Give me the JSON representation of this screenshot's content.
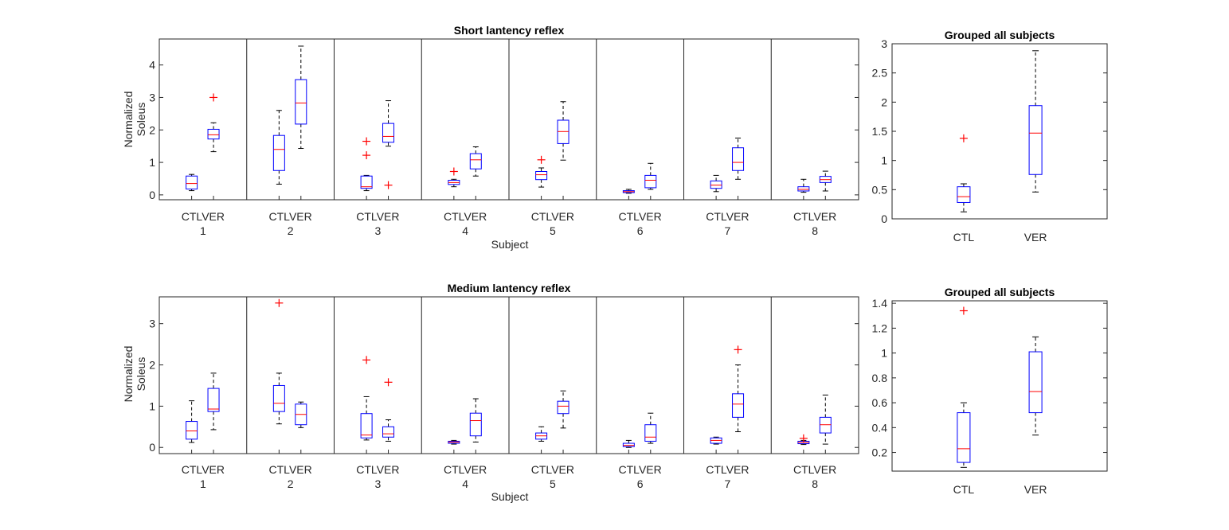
{
  "colors": {
    "box": "#0000ff",
    "median": "#ff0000",
    "outlier": "#ff0000",
    "whisker": "#000000",
    "axis": "#262626"
  },
  "chart_data": [
    {
      "type": "box",
      "title": "Short lantency reflex",
      "xlabel": "Subject",
      "ylabel": [
        "Normalized",
        "Soleus"
      ],
      "ylim": [
        -0.15,
        4.8
      ],
      "yticks": [
        0,
        1,
        2,
        3,
        4
      ],
      "group_labels": [
        "1",
        "2",
        "3",
        "4",
        "5",
        "6",
        "7",
        "8"
      ],
      "condition_labels": [
        "CTL",
        "VER"
      ],
      "groups": [
        {
          "label": "1",
          "boxes": [
            {
              "condition": "CTL",
              "min": 0.13,
              "q1": 0.18,
              "median": 0.35,
              "q3": 0.58,
              "max": 0.63,
              "outliers": []
            },
            {
              "condition": "VER",
              "min": 1.33,
              "q1": 1.72,
              "median": 1.85,
              "q3": 2.02,
              "max": 2.22,
              "outliers": [
                3.0
              ]
            }
          ]
        },
        {
          "label": "2",
          "boxes": [
            {
              "condition": "CTL",
              "min": 0.33,
              "q1": 0.75,
              "median": 1.4,
              "q3": 1.83,
              "max": 2.6,
              "outliers": []
            },
            {
              "condition": "VER",
              "min": 1.43,
              "q1": 2.18,
              "median": 2.83,
              "q3": 3.55,
              "max": 4.58,
              "outliers": []
            }
          ]
        },
        {
          "label": "3",
          "boxes": [
            {
              "condition": "CTL",
              "min": 0.13,
              "q1": 0.2,
              "median": 0.25,
              "q3": 0.58,
              "max": 0.6,
              "outliers": [
                1.22,
                1.65
              ]
            },
            {
              "condition": "VER",
              "min": 1.5,
              "q1": 1.62,
              "median": 1.8,
              "q3": 2.2,
              "max": 2.9,
              "outliers": [
                0.3
              ]
            }
          ]
        },
        {
          "label": "4",
          "boxes": [
            {
              "condition": "CTL",
              "min": 0.25,
              "q1": 0.32,
              "median": 0.38,
              "q3": 0.45,
              "max": 0.48,
              "outliers": [
                0.72
              ]
            },
            {
              "condition": "VER",
              "min": 0.58,
              "q1": 0.8,
              "median": 1.08,
              "q3": 1.27,
              "max": 1.48,
              "outliers": []
            }
          ]
        },
        {
          "label": "5",
          "boxes": [
            {
              "condition": "CTL",
              "min": 0.24,
              "q1": 0.47,
              "median": 0.62,
              "q3": 0.72,
              "max": 0.83,
              "outliers": [
                1.08
              ]
            },
            {
              "condition": "VER",
              "min": 1.07,
              "q1": 1.58,
              "median": 1.95,
              "q3": 2.3,
              "max": 2.87,
              "outliers": []
            }
          ]
        },
        {
          "label": "6",
          "boxes": [
            {
              "condition": "CTL",
              "min": 0.05,
              "q1": 0.07,
              "median": 0.1,
              "q3": 0.13,
              "max": 0.17,
              "outliers": []
            },
            {
              "condition": "VER",
              "min": 0.17,
              "q1": 0.22,
              "median": 0.45,
              "q3": 0.6,
              "max": 0.97,
              "outliers": []
            }
          ]
        },
        {
          "label": "7",
          "boxes": [
            {
              "condition": "CTL",
              "min": 0.1,
              "q1": 0.2,
              "median": 0.3,
              "q3": 0.43,
              "max": 0.6,
              "outliers": []
            },
            {
              "condition": "VER",
              "min": 0.48,
              "q1": 0.75,
              "median": 1.0,
              "q3": 1.45,
              "max": 1.75,
              "outliers": []
            }
          ]
        },
        {
          "label": "8",
          "boxes": [
            {
              "condition": "CTL",
              "min": 0.08,
              "q1": 0.12,
              "median": 0.17,
              "q3": 0.25,
              "max": 0.48,
              "outliers": []
            },
            {
              "condition": "VER",
              "min": 0.12,
              "q1": 0.38,
              "median": 0.47,
              "q3": 0.57,
              "max": 0.73,
              "outliers": []
            }
          ]
        }
      ]
    },
    {
      "type": "box",
      "title": "Grouped all subjects",
      "xlabel": "",
      "ylabel": "",
      "ylim": [
        0,
        3
      ],
      "yticks": [
        0,
        0.5,
        1,
        1.5,
        2,
        2.5,
        3
      ],
      "categories": [
        "CTL",
        "VER"
      ],
      "boxes": [
        {
          "condition": "CTL",
          "min": 0.12,
          "q1": 0.28,
          "median": 0.38,
          "q3": 0.55,
          "max": 0.6,
          "outliers": [
            1.38
          ]
        },
        {
          "condition": "VER",
          "min": 0.46,
          "q1": 0.76,
          "median": 1.47,
          "q3": 1.94,
          "max": 2.88,
          "outliers": []
        }
      ]
    },
    {
      "type": "box",
      "title": "Medium lantency reflex",
      "xlabel": "Subject",
      "ylabel": [
        "Normalized",
        "Soleus"
      ],
      "ylim": [
        -0.15,
        3.65
      ],
      "yticks": [
        0,
        1,
        2,
        3
      ],
      "group_labels": [
        "1",
        "2",
        "3",
        "4",
        "5",
        "6",
        "7",
        "8"
      ],
      "condition_labels": [
        "CTL",
        "VER"
      ],
      "groups": [
        {
          "label": "1",
          "boxes": [
            {
              "condition": "CTL",
              "min": 0.12,
              "q1": 0.2,
              "median": 0.4,
              "q3": 0.63,
              "max": 1.13,
              "outliers": []
            },
            {
              "condition": "VER",
              "min": 0.43,
              "q1": 0.87,
              "median": 0.93,
              "q3": 1.43,
              "max": 1.8,
              "outliers": []
            }
          ]
        },
        {
          "label": "2",
          "boxes": [
            {
              "condition": "CTL",
              "min": 0.57,
              "q1": 0.87,
              "median": 1.07,
              "q3": 1.5,
              "max": 1.8,
              "outliers": [
                3.5
              ]
            },
            {
              "condition": "VER",
              "min": 0.48,
              "q1": 0.55,
              "median": 0.8,
              "q3": 1.05,
              "max": 1.1,
              "outliers": []
            }
          ]
        },
        {
          "label": "3",
          "boxes": [
            {
              "condition": "CTL",
              "min": 0.18,
              "q1": 0.23,
              "median": 0.3,
              "q3": 0.82,
              "max": 1.23,
              "outliers": [
                2.12
              ]
            },
            {
              "condition": "VER",
              "min": 0.15,
              "q1": 0.25,
              "median": 0.33,
              "q3": 0.5,
              "max": 0.67,
              "outliers": [
                1.58
              ]
            }
          ]
        },
        {
          "label": "4",
          "boxes": [
            {
              "condition": "CTL",
              "min": 0.08,
              "q1": 0.1,
              "median": 0.13,
              "q3": 0.15,
              "max": 0.17,
              "outliers": []
            },
            {
              "condition": "VER",
              "min": 0.13,
              "q1": 0.28,
              "median": 0.65,
              "q3": 0.83,
              "max": 1.18,
              "outliers": []
            }
          ]
        },
        {
          "label": "5",
          "boxes": [
            {
              "condition": "CTL",
              "min": 0.15,
              "q1": 0.2,
              "median": 0.28,
              "q3": 0.35,
              "max": 0.5,
              "outliers": []
            },
            {
              "condition": "VER",
              "min": 0.47,
              "q1": 0.82,
              "median": 1.0,
              "q3": 1.12,
              "max": 1.37,
              "outliers": []
            }
          ]
        },
        {
          "label": "6",
          "boxes": [
            {
              "condition": "CTL",
              "min": 0.0,
              "q1": 0.02,
              "median": 0.05,
              "q3": 0.1,
              "max": 0.17,
              "outliers": []
            },
            {
              "condition": "VER",
              "min": 0.1,
              "q1": 0.15,
              "median": 0.25,
              "q3": 0.55,
              "max": 0.83,
              "outliers": []
            }
          ]
        },
        {
          "label": "7",
          "boxes": [
            {
              "condition": "CTL",
              "min": 0.08,
              "q1": 0.1,
              "median": 0.17,
              "q3": 0.23,
              "max": 0.25,
              "outliers": []
            },
            {
              "condition": "VER",
              "min": 0.38,
              "q1": 0.73,
              "median": 1.05,
              "q3": 1.3,
              "max": 2.0,
              "outliers": [
                2.37
              ]
            }
          ]
        },
        {
          "label": "8",
          "boxes": [
            {
              "condition": "CTL",
              "min": 0.07,
              "q1": 0.09,
              "median": 0.12,
              "q3": 0.15,
              "max": 0.17,
              "outliers": [
                0.22
              ]
            },
            {
              "condition": "VER",
              "min": 0.08,
              "q1": 0.35,
              "median": 0.55,
              "q3": 0.73,
              "max": 1.27,
              "outliers": []
            }
          ]
        }
      ]
    },
    {
      "type": "box",
      "title": "Grouped all subjects",
      "xlabel": "",
      "ylabel": "",
      "ylim": [
        0.05,
        1.42
      ],
      "yticks": [
        0.2,
        0.4,
        0.6,
        0.8,
        1,
        1.2,
        1.4
      ],
      "categories": [
        "CTL",
        "VER"
      ],
      "boxes": [
        {
          "condition": "CTL",
          "min": 0.08,
          "q1": 0.12,
          "median": 0.23,
          "q3": 0.52,
          "max": 0.6,
          "outliers": [
            1.34
          ]
        },
        {
          "condition": "VER",
          "min": 0.34,
          "q1": 0.52,
          "median": 0.69,
          "q3": 1.01,
          "max": 1.13,
          "outliers": []
        }
      ]
    }
  ]
}
